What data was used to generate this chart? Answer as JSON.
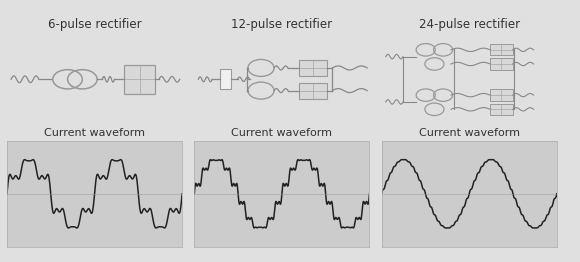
{
  "titles": [
    "6-pulse rectifier",
    "12-pulse rectifier",
    "24-pulse rectifier"
  ],
  "waveform_label": "Current waveform",
  "bg_color": "#e0e0e0",
  "panel_bg": "#ffffff",
  "waveform_bg": "#cccccc",
  "border_color": "#bbbbbb",
  "text_color": "#333333",
  "wave_color": "#222222",
  "circ_color": "#999999",
  "line_color": "#888888",
  "box_fill": "#d8d8d8",
  "title_fontsize": 8.5,
  "label_fontsize": 8.0
}
